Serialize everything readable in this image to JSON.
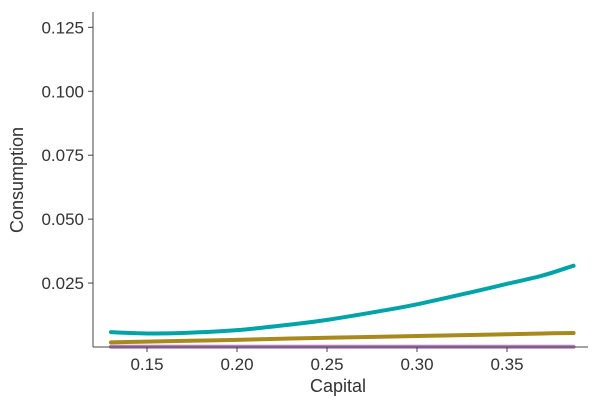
{
  "chart_data": {
    "type": "line",
    "title": "",
    "xlabel": "Capital",
    "ylabel": "Consumption",
    "xlim": [
      0.12,
      0.395
    ],
    "ylim": [
      0,
      0.131
    ],
    "x_ticks": [
      0.15,
      0.2,
      0.25,
      0.3,
      0.35
    ],
    "x_tick_labels": [
      "0.15",
      "0.20",
      "0.25",
      "0.30",
      "0.35"
    ],
    "y_ticks": [
      0.025,
      0.05,
      0.075,
      0.1,
      0.125
    ],
    "y_tick_labels": [
      "0.025",
      "0.050",
      "0.075",
      "0.100",
      "0.125"
    ],
    "grid": false,
    "legend": "none",
    "x": [
      0.13,
      0.15,
      0.17,
      0.2,
      0.23,
      0.25,
      0.28,
      0.3,
      0.33,
      0.35,
      0.37,
      0.387
    ],
    "series": [
      {
        "color": "#00a4a8",
        "values": [
          0.0058,
          0.0053,
          0.0055,
          0.0066,
          0.0088,
          0.0106,
          0.0141,
          0.0167,
          0.0214,
          0.0247,
          0.028,
          0.0318
        ]
      },
      {
        "color": "#a88a1c",
        "values": [
          0.0018,
          0.0021,
          0.0024,
          0.0028,
          0.0033,
          0.0036,
          0.004,
          0.0043,
          0.0047,
          0.005,
          0.0053,
          0.0055
        ]
      },
      {
        "color": "#b57fc0",
        "values": [
          0.0001,
          0.0001,
          0.0001,
          0.0001,
          0.0001,
          0.0001,
          0.0001,
          0.0001,
          0.0001,
          0.0001,
          0.0001,
          0.0001
        ]
      }
    ]
  }
}
